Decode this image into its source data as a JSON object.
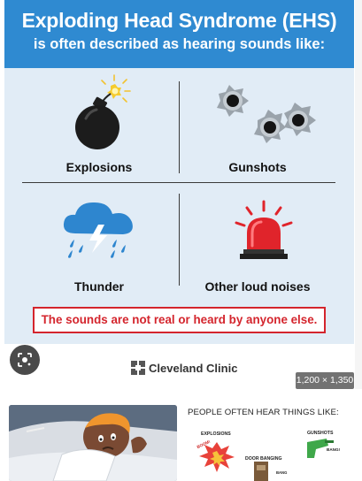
{
  "infographic": {
    "title": "Exploding Head Syndrome (EHS)",
    "subtitle": "is often described as hearing sounds like:",
    "cells": [
      {
        "label": "Explosions",
        "icon": "bomb-icon"
      },
      {
        "label": "Gunshots",
        "icon": "bullet-hole-icon"
      },
      {
        "label": "Thunder",
        "icon": "storm-cloud-icon"
      },
      {
        "label": "Other loud noises",
        "icon": "siren-icon"
      }
    ],
    "disclaimer": "The sounds are not real or heard by anyone else.",
    "brand": "Cleveland Clinic",
    "colors": {
      "header": "#2f8ad1",
      "background": "#e1ecf6",
      "alert": "#d4252d"
    }
  },
  "viewer": {
    "image_size": "1,200 × 1,350",
    "lens_button": "lens-icon"
  },
  "related": {
    "thumb2": {
      "heading": "PEOPLE OFTEN HEAR THINGS LIKE:",
      "labels": {
        "explosions": "EXPLOSIONS",
        "gunshots": "GUNSHOTS",
        "door": "DOOR BANGING",
        "boom": "BOOM!",
        "bang": "BANG!",
        "bang2": "BANG"
      }
    }
  }
}
